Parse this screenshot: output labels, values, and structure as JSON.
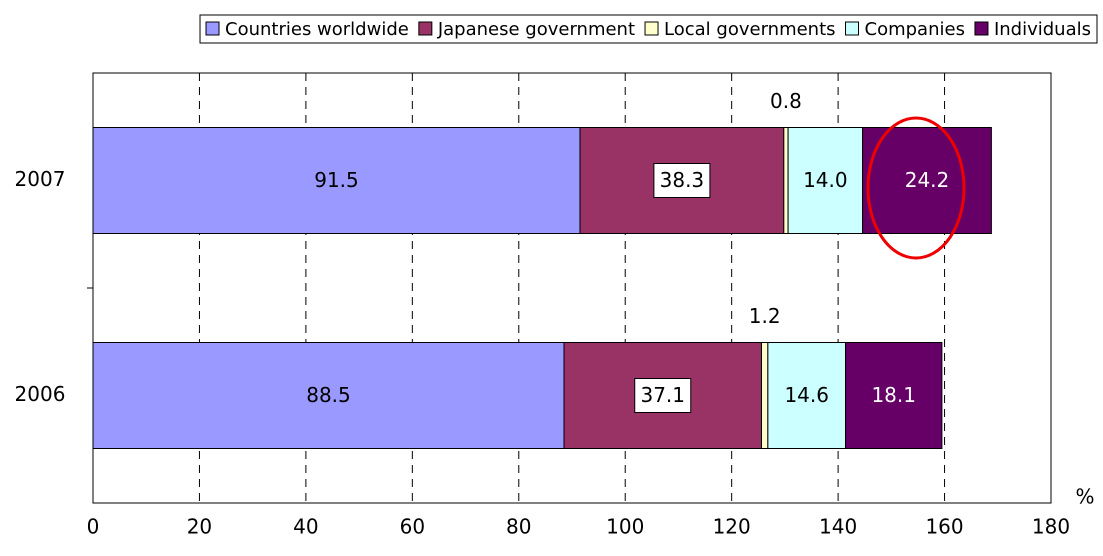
{
  "chart_data": {
    "type": "bar",
    "orientation": "horizontal",
    "stacked": true,
    "categories": [
      "2007",
      "2006"
    ],
    "series": [
      {
        "name": "Countries worldwide",
        "color": "#9999ff",
        "values": [
          91.5,
          88.5
        ]
      },
      {
        "name": "Japanese government",
        "color": "#993366",
        "values": [
          38.3,
          37.1
        ]
      },
      {
        "name": "Local governments",
        "color": "#ffffcc",
        "values": [
          0.8,
          1.2
        ]
      },
      {
        "name": "Companies",
        "color": "#ccffff",
        "values": [
          14.0,
          14.6
        ],
        "value_labels": [
          "14.0",
          "14.6"
        ]
      },
      {
        "name": "Individuals",
        "color": "#660066",
        "values": [
          24.2,
          18.1
        ]
      }
    ],
    "xlabel": "%",
    "xlim": [
      0,
      180
    ],
    "xticks": [
      0,
      20,
      40,
      60,
      80,
      100,
      120,
      140,
      160,
      180
    ],
    "grid": true,
    "legend": "top"
  }
}
